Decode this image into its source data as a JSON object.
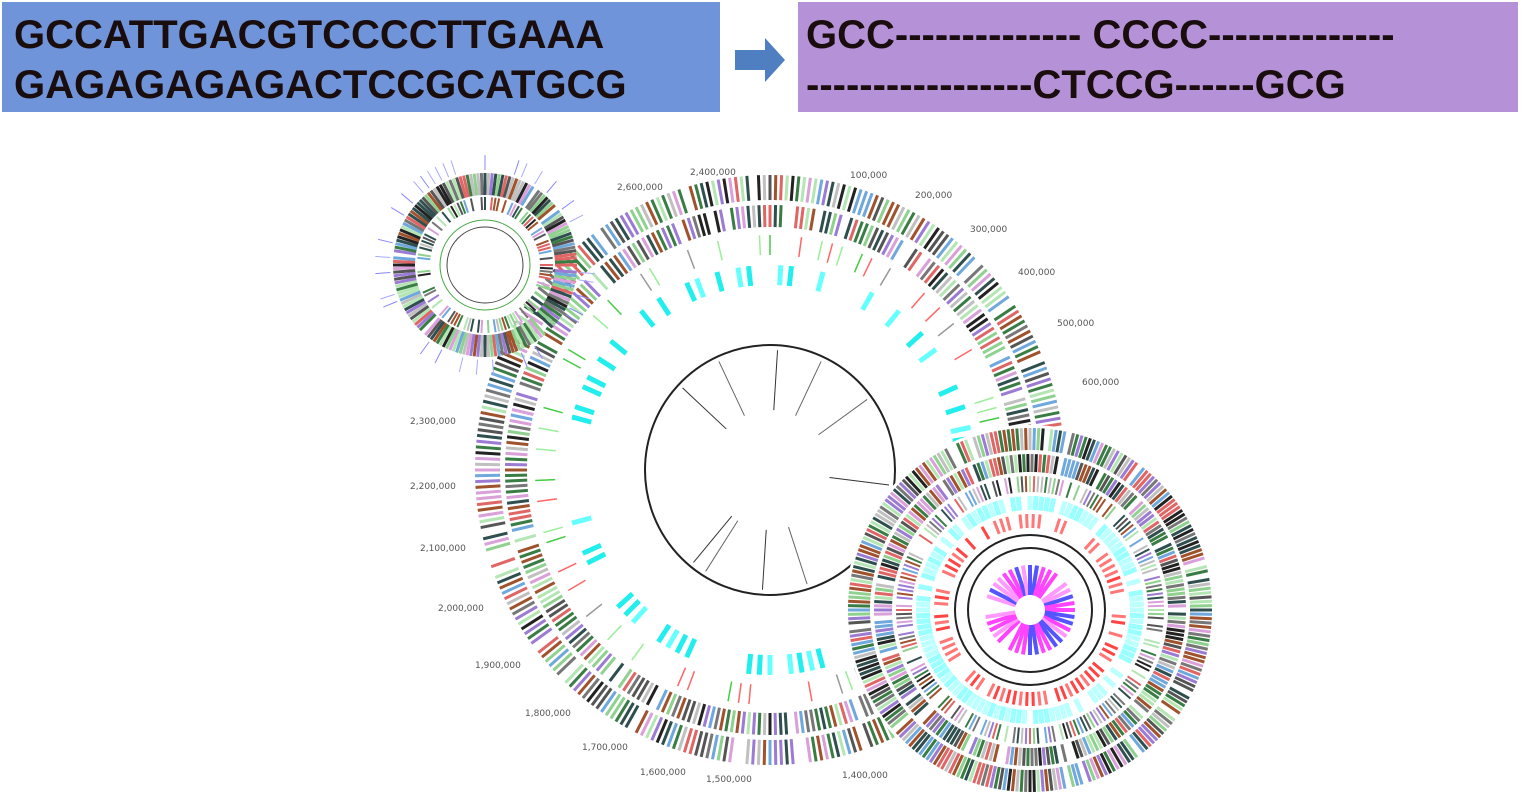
{
  "source_box": {
    "lines": [
      "GCCATTGACGTCCCCTTGAAA",
      "GAGAGAGAGACTCCGCATGCG"
    ]
  },
  "aligned_box": {
    "lines": [
      "GCC-------------- CCCC--------------",
      "-----------------CTCCG------GCG"
    ]
  },
  "genome_map": {
    "tick_labels": [
      "2,600,000",
      "2,400,000",
      "100,000",
      "200,000",
      "300,000",
      "400,000",
      "500,000",
      "600,000",
      "2,300,000",
      "2,200,000",
      "2,100,000",
      "2,000,000",
      "1,900,000",
      "1,800,000",
      "1,700,000",
      "1,600,000",
      "1,500,000",
      "1,400,000"
    ]
  }
}
